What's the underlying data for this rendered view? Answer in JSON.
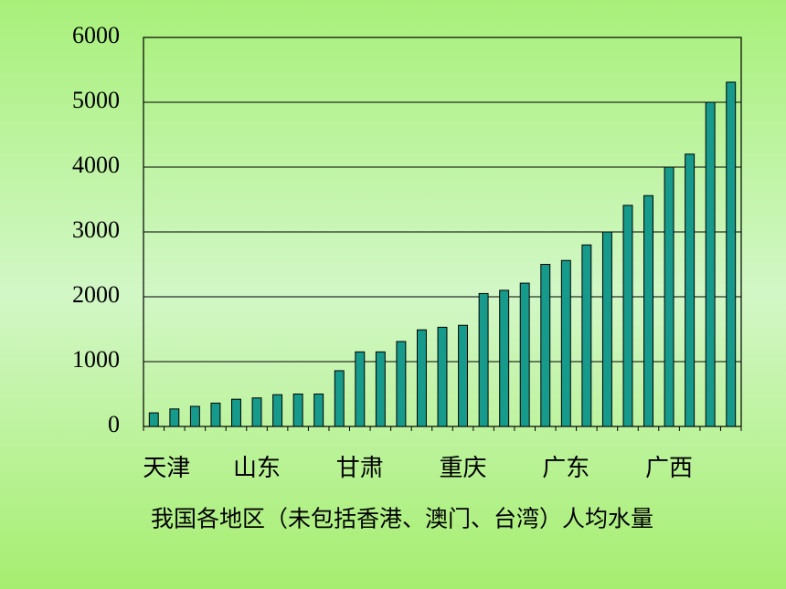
{
  "chart_data": {
    "type": "bar",
    "title": "我国各地区（未包括香港、澳门、台湾）人均水量",
    "categories": [
      "天津",
      null,
      null,
      null,
      null,
      "山东",
      null,
      null,
      null,
      null,
      "甘肃",
      null,
      null,
      null,
      null,
      "重庆",
      null,
      null,
      null,
      null,
      "广东",
      null,
      null,
      null,
      null,
      "广西",
      null,
      null,
      null
    ],
    "values": [
      210,
      270,
      310,
      360,
      420,
      440,
      490,
      500,
      500,
      860,
      1150,
      1150,
      1310,
      1490,
      1530,
      1560,
      2050,
      2100,
      2210,
      2500,
      2560,
      2800,
      3000,
      3410,
      3560,
      4000,
      4200,
      5000,
      5310
    ],
    "color": "#159a8c",
    "ylim": [
      0,
      6000
    ],
    "yticks": [
      0,
      1000,
      2000,
      3000,
      4000,
      5000,
      6000
    ],
    "grid": true
  }
}
